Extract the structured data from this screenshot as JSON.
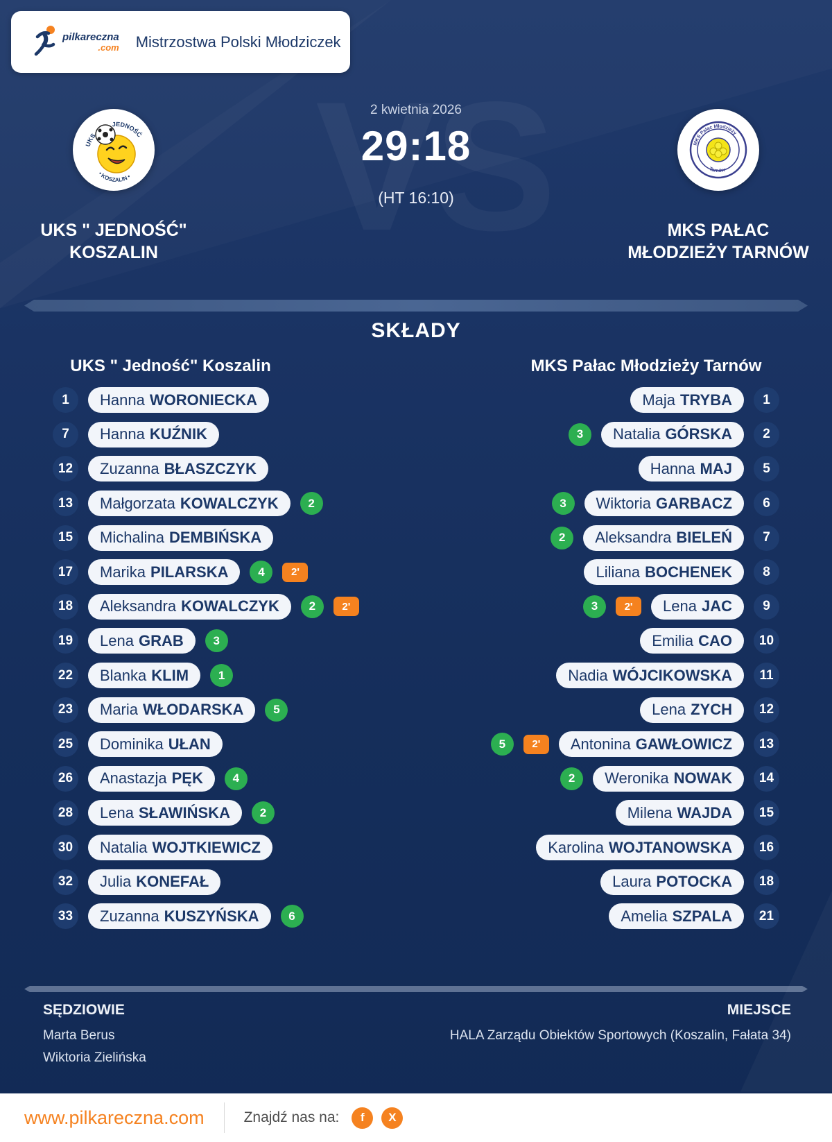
{
  "header": {
    "brand_name": "pilkareczna",
    "brand_tld": ".com",
    "title": "Mistrzostwa Polski Młodziczek"
  },
  "match": {
    "date": "2 kwietnia 2026",
    "score": "29:18",
    "halftime": "(HT 16:10)",
    "vs_watermark": "VS"
  },
  "lineups_title": "SKŁADY",
  "teams": [
    {
      "name_lines": [
        "UKS \" JEDNOŚĆ\"",
        "KOSZALIN"
      ],
      "column_header": "UKS \" Jedność\" Koszalin",
      "players": [
        {
          "num": 1,
          "first": "Hanna",
          "last": "WORONIECKA",
          "goals": null,
          "card": null
        },
        {
          "num": 7,
          "first": "Hanna",
          "last": "KUŹNIK",
          "goals": null,
          "card": null
        },
        {
          "num": 12,
          "first": "Zuzanna",
          "last": "BŁASZCZYK",
          "goals": null,
          "card": null
        },
        {
          "num": 13,
          "first": "Małgorzata",
          "last": "KOWALCZYK",
          "goals": 2,
          "card": null
        },
        {
          "num": 15,
          "first": "Michalina",
          "last": "DEMBIŃSKA",
          "goals": null,
          "card": null
        },
        {
          "num": 17,
          "first": "Marika",
          "last": "PILARSKA",
          "goals": 4,
          "card": "2'"
        },
        {
          "num": 18,
          "first": "Aleksandra",
          "last": "KOWALCZYK",
          "goals": 2,
          "card": "2'"
        },
        {
          "num": 19,
          "first": "Lena",
          "last": "GRAB",
          "goals": 3,
          "card": null
        },
        {
          "num": 22,
          "first": "Blanka",
          "last": "KLIM",
          "goals": 1,
          "card": null
        },
        {
          "num": 23,
          "first": "Maria",
          "last": "WŁODARSKA",
          "goals": 5,
          "card": null
        },
        {
          "num": 25,
          "first": "Dominika",
          "last": "UŁAN",
          "goals": null,
          "card": null
        },
        {
          "num": 26,
          "first": "Anastazja",
          "last": "PĘK",
          "goals": 4,
          "card": null
        },
        {
          "num": 28,
          "first": "Lena",
          "last": "SŁAWIŃSKA",
          "goals": 2,
          "card": null
        },
        {
          "num": 30,
          "first": "Natalia",
          "last": "WOJTKIEWICZ",
          "goals": null,
          "card": null
        },
        {
          "num": 32,
          "first": "Julia",
          "last": "KONEFAŁ",
          "goals": null,
          "card": null
        },
        {
          "num": 33,
          "first": "Zuzanna",
          "last": "KUSZYŃSKA",
          "goals": 6,
          "card": null
        }
      ]
    },
    {
      "name_lines": [
        "MKS PAŁAC",
        "MŁODZIEŻY TARNÓW"
      ],
      "column_header": "MKS Pałac Młodzieży Tarnów",
      "players": [
        {
          "num": 1,
          "first": "Maja",
          "last": "TRYBA",
          "goals": null,
          "card": null
        },
        {
          "num": 2,
          "first": "Natalia",
          "last": "GÓRSKA",
          "goals": 3,
          "card": null
        },
        {
          "num": 5,
          "first": "Hanna",
          "last": "MAJ",
          "goals": null,
          "card": null
        },
        {
          "num": 6,
          "first": "Wiktoria",
          "last": "GARBACZ",
          "goals": 3,
          "card": null
        },
        {
          "num": 7,
          "first": "Aleksandra",
          "last": "BIELEŃ",
          "goals": 2,
          "card": null
        },
        {
          "num": 8,
          "first": "Liliana",
          "last": "BOCHENEK",
          "goals": null,
          "card": null
        },
        {
          "num": 9,
          "first": "Lena",
          "last": "JAC",
          "goals": 3,
          "card": "2'"
        },
        {
          "num": 10,
          "first": "Emilia",
          "last": "CAO",
          "goals": null,
          "card": null
        },
        {
          "num": 11,
          "first": "Nadia",
          "last": "WÓJCIKOWSKA",
          "goals": null,
          "card": null
        },
        {
          "num": 12,
          "first": "Lena",
          "last": "ZYCH",
          "goals": null,
          "card": null
        },
        {
          "num": 13,
          "first": "Antonina",
          "last": "GAWŁOWICZ",
          "goals": 5,
          "card": "2'"
        },
        {
          "num": 14,
          "first": "Weronika",
          "last": "NOWAK",
          "goals": 2,
          "card": null
        },
        {
          "num": 15,
          "first": "Milena",
          "last": "WAJDA",
          "goals": null,
          "card": null
        },
        {
          "num": 16,
          "first": "Karolina",
          "last": "WOJTANOWSKA",
          "goals": null,
          "card": null
        },
        {
          "num": 18,
          "first": "Laura",
          "last": "POTOCKA",
          "goals": null,
          "card": null
        },
        {
          "num": 21,
          "first": "Amelia",
          "last": "SZPALA",
          "goals": null,
          "card": null
        }
      ]
    }
  ],
  "officials": {
    "referees_label": "SĘDZIOWIE",
    "referees": [
      "Marta Berus",
      "Wiktoria Zielińska"
    ],
    "venue_label": "MIEJSCE",
    "venue": "HALA Zarządu Obiektów Sportowych (Koszalin, Fałata 34)"
  },
  "footer": {
    "url": "www.pilkareczna.com",
    "find_us": "Znajdź nas na:",
    "social": [
      "f",
      "X"
    ]
  },
  "colors": {
    "accent_orange": "#f58220",
    "goal_green": "#2caf51",
    "card_orange": "#f5821f",
    "navy": "#1c3868",
    "background": "#1a3363"
  }
}
